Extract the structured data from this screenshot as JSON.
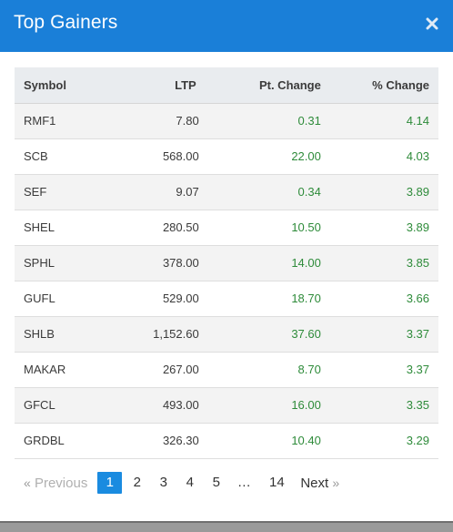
{
  "modal": {
    "title": "Top Gainers",
    "close_icon": "close-icon"
  },
  "colors": {
    "header_bg": "#1a7fd8",
    "positive": "#2e8b3a",
    "active_page": "#1a8be0"
  },
  "table": {
    "headers": {
      "symbol": "Symbol",
      "ltp": "LTP",
      "pt_change": "Pt. Change",
      "pct_change": "% Change"
    },
    "rows": [
      {
        "symbol": "RMF1",
        "ltp": "7.80",
        "pt_change": "0.31",
        "pct_change": "4.14"
      },
      {
        "symbol": "SCB",
        "ltp": "568.00",
        "pt_change": "22.00",
        "pct_change": "4.03"
      },
      {
        "symbol": "SEF",
        "ltp": "9.07",
        "pt_change": "0.34",
        "pct_change": "3.89"
      },
      {
        "symbol": "SHEL",
        "ltp": "280.50",
        "pt_change": "10.50",
        "pct_change": "3.89"
      },
      {
        "symbol": "SPHL",
        "ltp": "378.00",
        "pt_change": "14.00",
        "pct_change": "3.85"
      },
      {
        "symbol": "GUFL",
        "ltp": "529.00",
        "pt_change": "18.70",
        "pct_change": "3.66"
      },
      {
        "symbol": "SHLB",
        "ltp": "1,152.60",
        "pt_change": "37.60",
        "pct_change": "3.37"
      },
      {
        "symbol": "MAKAR",
        "ltp": "267.00",
        "pt_change": "8.70",
        "pct_change": "3.37"
      },
      {
        "symbol": "GFCL",
        "ltp": "493.00",
        "pt_change": "16.00",
        "pct_change": "3.35"
      },
      {
        "symbol": "GRDBL",
        "ltp": "326.30",
        "pt_change": "10.40",
        "pct_change": "3.29"
      }
    ]
  },
  "pagination": {
    "prev_chevron": "«",
    "prev_label": "Previous",
    "pages": [
      "1",
      "2",
      "3",
      "4",
      "5"
    ],
    "ellipsis": "…",
    "last_page": "14",
    "next_label": "Next",
    "next_chevron": "»",
    "current_page": "1"
  }
}
